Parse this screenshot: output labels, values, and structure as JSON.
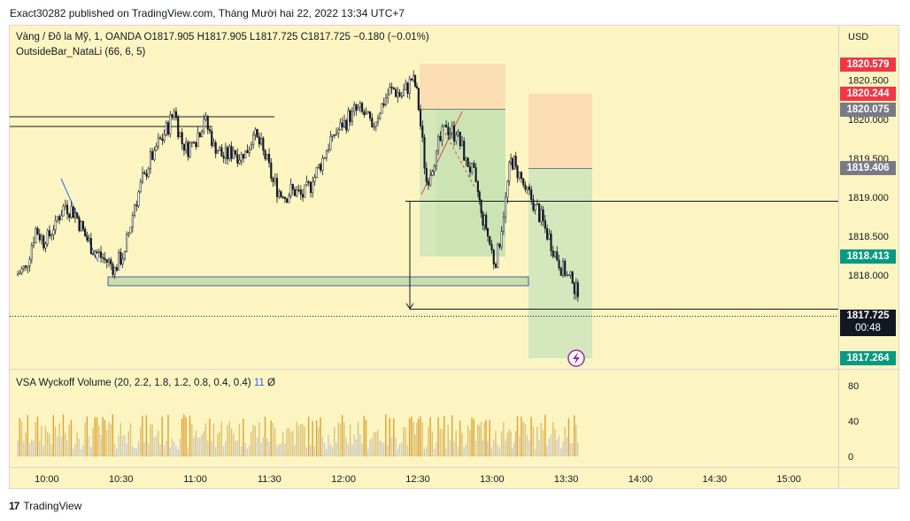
{
  "header": {
    "published_text": "Exact30282 published on TradingView.com, Tháng Mười hai 22, 2022 13:34 UTC+7"
  },
  "legend": {
    "symbol": "Vàng / Đô la Mỹ, 1, OANDA",
    "ohlc": "O1817.905  H1817.905  L1817.725  C1817.725  −0.180 (−0.01%)",
    "indicator": "OutsideBar_NataLi (66, 6, 5)",
    "volume_indicator": "VSA Wyckoff Volume (20, 2.2, 1.8, 1.2, 0.8, 0.4, 0.4)",
    "volume_value": "11",
    "volume_zero": "Ø"
  },
  "price_axis": {
    "currency": "USD",
    "ticks": [
      "1818.000",
      "1818.500",
      "1819.000",
      "1819.500",
      "1820.000",
      "1820.500"
    ]
  },
  "price_tags": [
    {
      "label": "1820.579",
      "color": "#f23645"
    },
    {
      "label": "1820.244",
      "color": "#f23645"
    },
    {
      "label": "1820.075",
      "color": "#787b86"
    },
    {
      "label": "1819.406",
      "color": "#787b86"
    },
    {
      "label": "1818.413",
      "color": "#089981"
    },
    {
      "label": "1817.725",
      "color": "#131722"
    },
    {
      "label": "1817.264",
      "color": "#089981"
    }
  ],
  "countdown": "00:48",
  "volume_axis": {
    "ticks": [
      "80",
      "40",
      "0"
    ]
  },
  "time_axis": {
    "ticks": [
      "10:00",
      "10:30",
      "11:00",
      "11:30",
      "12:00",
      "12:30",
      "13:00",
      "13:30",
      "14:00",
      "14:30",
      "15:00"
    ]
  },
  "footer": {
    "brand": "TradingView",
    "logo_text": "17"
  },
  "chart_data": {
    "type": "line",
    "title": "Vàng / Đô la Mỹ, 1, OANDA",
    "x_unit": "time",
    "xlim": [
      "09:45",
      "15:20"
    ],
    "ylim": [
      1816.8,
      1821.2
    ],
    "close_series": [
      [
        "09:48",
        1818.1
      ],
      [
        "09:52",
        1818.6
      ],
      [
        "09:56",
        1818.4
      ],
      [
        "10:00",
        1818.7
      ],
      [
        "10:04",
        1818.9
      ],
      [
        "10:08",
        1818.8
      ],
      [
        "10:12",
        1818.5
      ],
      [
        "10:16",
        1818.3
      ],
      [
        "10:20",
        1818.2
      ],
      [
        "10:24",
        1818.1
      ],
      [
        "10:28",
        1818.3
      ],
      [
        "10:32",
        1818.9
      ],
      [
        "10:36",
        1819.3
      ],
      [
        "10:40",
        1819.6
      ],
      [
        "10:44",
        1819.8
      ],
      [
        "10:48",
        1820.1
      ],
      [
        "10:52",
        1819.6
      ],
      [
        "10:56",
        1819.7
      ],
      [
        "11:00",
        1820.0
      ],
      [
        "11:04",
        1819.7
      ],
      [
        "11:08",
        1819.5
      ],
      [
        "11:12",
        1819.6
      ],
      [
        "11:16",
        1819.5
      ],
      [
        "11:20",
        1819.8
      ],
      [
        "11:24",
        1819.6
      ],
      [
        "11:28",
        1819.2
      ],
      [
        "11:32",
        1819.0
      ],
      [
        "11:36",
        1819.1
      ],
      [
        "11:40",
        1819.0
      ],
      [
        "11:44",
        1819.2
      ],
      [
        "11:48",
        1819.5
      ],
      [
        "11:52",
        1819.8
      ],
      [
        "11:56",
        1819.9
      ],
      [
        "12:00",
        1820.1
      ],
      [
        "12:04",
        1820.1
      ],
      [
        "12:08",
        1819.9
      ],
      [
        "12:12",
        1820.2
      ],
      [
        "12:16",
        1820.4
      ],
      [
        "12:20",
        1820.3
      ],
      [
        "12:24",
        1820.5
      ],
      [
        "12:28",
        1820.4
      ],
      [
        "12:30",
        1819.2
      ],
      [
        "12:34",
        1819.6
      ],
      [
        "12:38",
        1819.9
      ],
      [
        "12:42",
        1819.8
      ],
      [
        "12:46",
        1819.5
      ],
      [
        "12:50",
        1819.2
      ],
      [
        "12:54",
        1818.8
      ],
      [
        "12:56",
        1818.6
      ],
      [
        "12:58",
        1818.1
      ],
      [
        "13:02",
        1819.0
      ],
      [
        "13:06",
        1819.5
      ],
      [
        "13:08",
        1819.4
      ],
      [
        "13:10",
        1819.1
      ],
      [
        "13:14",
        1818.9
      ],
      [
        "13:18",
        1818.6
      ],
      [
        "13:22",
        1818.3
      ],
      [
        "13:26",
        1818.0
      ],
      [
        "13:30",
        1817.9
      ],
      [
        "13:33",
        1817.725
      ]
    ],
    "horizontal_levels": [
      1820.075,
      1819.406,
      1819.0,
      1817.725
    ],
    "volume_series_max": 80,
    "grid": false,
    "legend_position": "top-left"
  }
}
